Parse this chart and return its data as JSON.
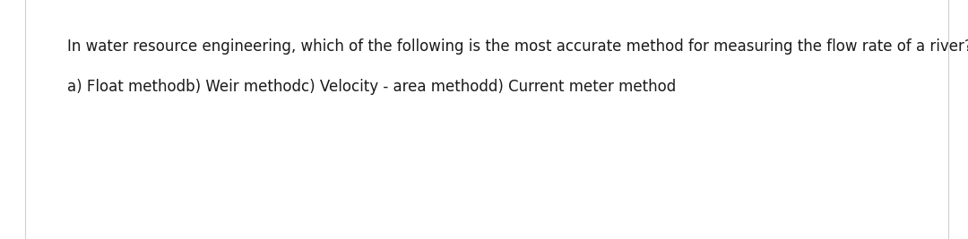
{
  "line1": "In water resource engineering, which of the following is the most accurate method for measuring the flow rate of a river?",
  "line2": "a) Float methodb) Weir methodc) Velocity - area methodd) Current meter method",
  "background_color": "#ffffff",
  "border_color": "#d0d0d0",
  "text_color": "#1a1a1a",
  "font_size": 12.0,
  "fig_width": 10.8,
  "fig_height": 2.67,
  "dpi": 100
}
